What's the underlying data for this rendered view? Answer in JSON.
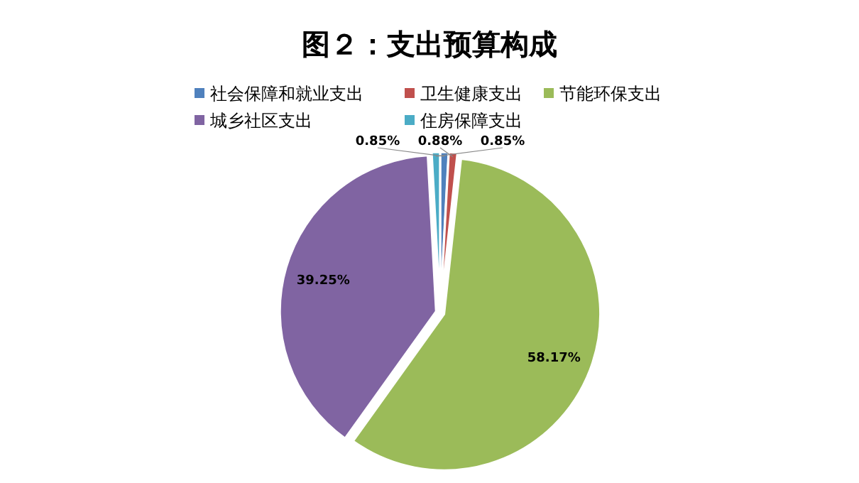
{
  "chart_data": {
    "type": "pie",
    "title": "图２：支出预算构成",
    "categories": [
      "社会保障和就业支出",
      "卫生健康支出",
      "节能环保支出",
      "城乡社区支出",
      "住房保障支出"
    ],
    "values": [
      0.85,
      0.88,
      58.17,
      39.25,
      0.85
    ],
    "colors": [
      "#4f81bd",
      "#c0504d",
      "#9bbb59",
      "#8064a2",
      "#4bacc6"
    ],
    "value_labels": [
      "0.85%",
      "0.88%",
      "58.17%",
      "39.25%",
      "0.85%"
    ],
    "legend": "top"
  }
}
